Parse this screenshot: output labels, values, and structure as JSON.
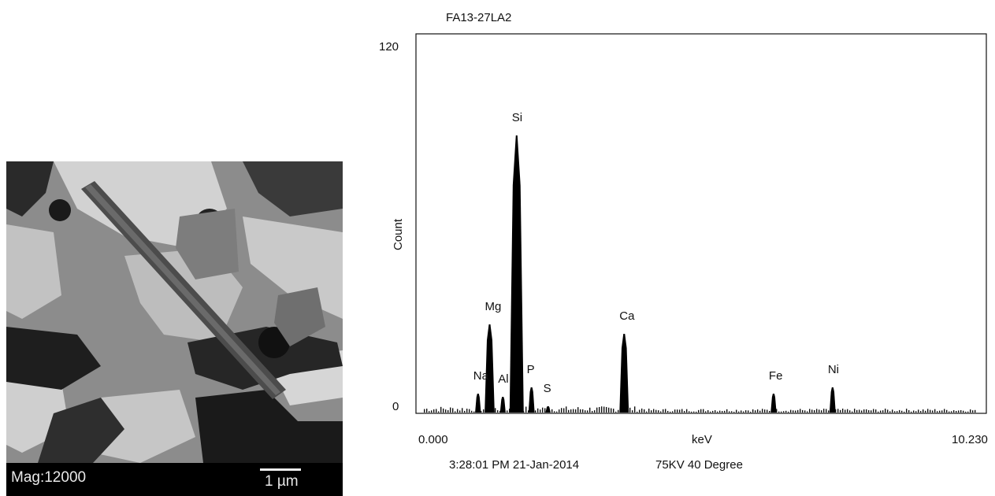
{
  "micrograph": {
    "magnification_label": "Mag:12000",
    "scale_label": "1 µm"
  },
  "spectrum": {
    "title": "FA13-27LA2",
    "footer_time": "3:28:01 PM  21-Jan-2014",
    "footer_conditions": "75KV 40 Degree"
  },
  "chart_data": {
    "type": "bar",
    "title": "FA13-27LA2",
    "xlabel": "keV",
    "ylabel": "Count",
    "xlim": [
      0.0,
      10.23
    ],
    "ylim": [
      0,
      120
    ],
    "x_tick_labels": [
      "0.000",
      "10.230"
    ],
    "y_tick_labels": [
      "0",
      "120"
    ],
    "grid": false,
    "peaks": [
      {
        "label": "Na",
        "energy": 1.04,
        "count": 6
      },
      {
        "label": "Mg",
        "energy": 1.25,
        "count": 28
      },
      {
        "label": "Al",
        "energy": 1.49,
        "count": 5
      },
      {
        "label": "Si",
        "energy": 1.74,
        "count": 88
      },
      {
        "label": "P",
        "energy": 2.01,
        "count": 8
      },
      {
        "label": "S",
        "energy": 2.31,
        "count": 2
      },
      {
        "label": "Ca",
        "energy": 3.69,
        "count": 25
      },
      {
        "label": "Fe",
        "energy": 6.4,
        "count": 6
      },
      {
        "label": "Ni",
        "energy": 7.47,
        "count": 8
      }
    ]
  }
}
